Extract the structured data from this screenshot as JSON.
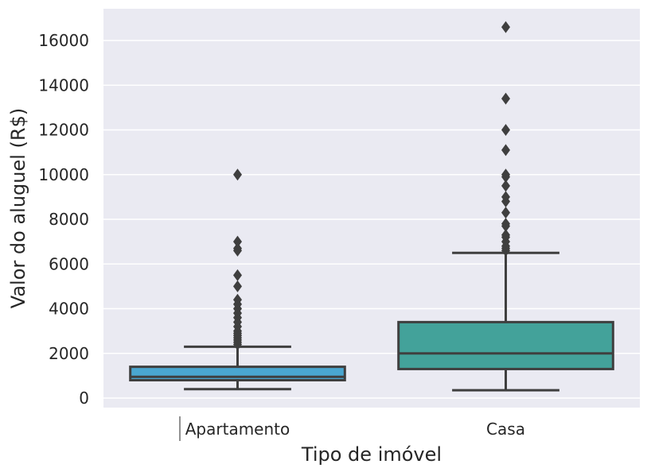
{
  "chart_data": {
    "type": "box",
    "xlabel": "Tipo de imóvel",
    "ylabel": "Valor do aluguel (R$)",
    "ylim": [
      -400,
      16900
    ],
    "yticks": [
      0,
      2000,
      4000,
      6000,
      8000,
      10000,
      12000,
      14000,
      16000
    ],
    "ytick_labels": [
      "0",
      "2000",
      "4000",
      "6000",
      "8000",
      "10000",
      "12000",
      "14000",
      "16000"
    ],
    "grid": true,
    "categories": [
      "Apartamento",
      "Casa"
    ],
    "boxes": [
      {
        "category": "Apartamento",
        "color": "#4aa6d0",
        "whisker_low": 400,
        "q1": 800,
        "median": 950,
        "q3": 1400,
        "whisker_high": 2300,
        "outliers": [
          2400,
          2500,
          2600,
          2700,
          2800,
          2900,
          3000,
          3200,
          3400,
          3600,
          3800,
          4000,
          4200,
          4400,
          5000,
          5500,
          6600,
          6700,
          7000,
          10000
        ]
      },
      {
        "category": "Casa",
        "color": "#43a29a",
        "whisker_low": 350,
        "q1": 1300,
        "median": 2000,
        "q3": 3400,
        "whisker_high": 6500,
        "outliers": [
          6600,
          6700,
          6800,
          7000,
          7200,
          7300,
          7700,
          7800,
          8300,
          8800,
          9000,
          9500,
          9900,
          10000,
          11100,
          12000,
          13400,
          16600
        ]
      }
    ]
  }
}
